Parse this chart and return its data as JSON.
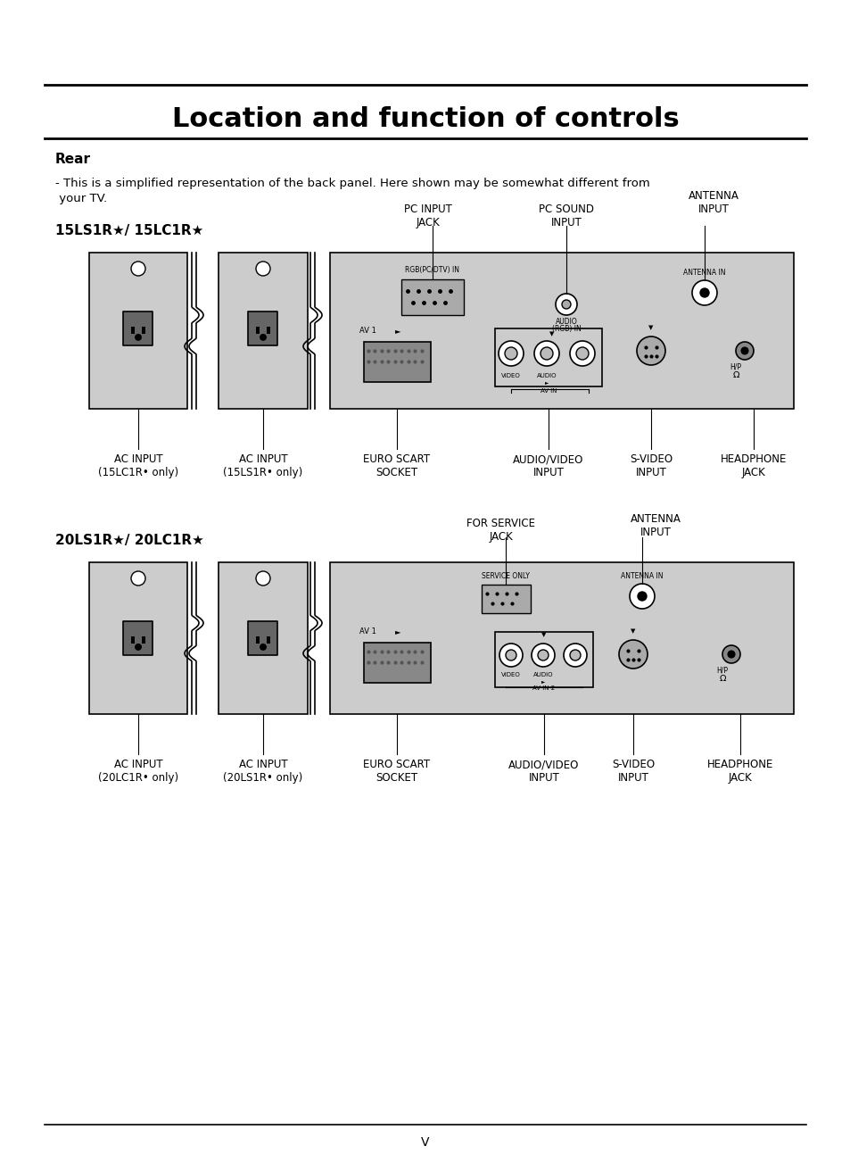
{
  "title": "Location and function of controls",
  "section": "Rear",
  "desc_line1": "- This is a simplified representation of the back panel. Here shown may be somewhat different from",
  "desc_line2": " your TV.",
  "model1_label": "15LS1R★/ 15LC1R★",
  "model2_label": "20LS1R★/ 20LC1R★",
  "bg_color": "#ffffff",
  "panel_color": "#d8d8d8",
  "outlet_color": "#888888",
  "border_color": "#000000",
  "footer_text": "V",
  "model1_labels": {
    "pc_input": "PC INPUT\nJACK",
    "pc_sound": "PC SOUND\nINPUT",
    "antenna": "ANTENNA\nINPUT",
    "ac1": "AC INPUT\n(15LC1R• only)",
    "ac2": "AC INPUT\n(15LS1R• only)",
    "euro_scart": "EURO SCART\nSOCKET",
    "audio_video": "AUDIO/VIDEO\nINPUT",
    "s_video": "S-VIDEO\nINPUT",
    "headphone": "HEADPHONE\nJACK"
  },
  "model2_labels": {
    "for_service": "FOR SERVICE\nJACK",
    "antenna": "ANTENNA\nINPUT",
    "ac1": "AC INPUT\n(20LC1R• only)",
    "ac2": "AC INPUT\n(20LS1R• only)",
    "euro_scart": "EURO SCART\nSOCKET",
    "audio_video": "AUDIO/VIDEO\nINPUT",
    "s_video": "S-VIDEO\nINPUT",
    "headphone": "HEADPHONE\nJACK"
  }
}
